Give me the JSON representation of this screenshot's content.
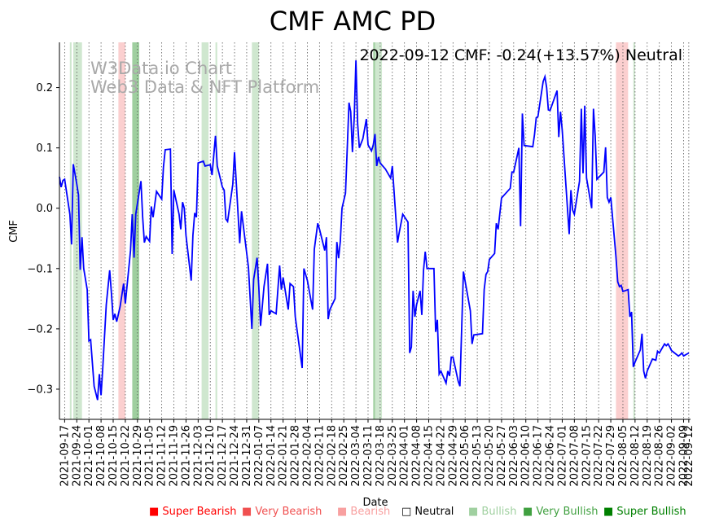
{
  "chart_data": {
    "type": "line",
    "title": "CMF AMC PD",
    "status_text": "2022-09-12 CMF: -0.24(+13.57%) Neutral",
    "watermark": [
      "W3Data.io Chart",
      "Web3 Data & NFT Platform"
    ],
    "xlabel": "Date",
    "ylabel": "CMF",
    "xlim": [
      "2021-09-14",
      "2022-09-13"
    ],
    "ylim": [
      -0.35,
      0.275
    ],
    "yticks": [
      0.2,
      0.1,
      0.0,
      -0.1,
      -0.2,
      -0.3
    ],
    "ytick_labels": [
      "0.2",
      "0.1",
      "0.0",
      "−0.1",
      "−0.2",
      "−0.3"
    ],
    "xtick_labels": [
      "2021-09-17",
      "2021-09-24",
      "2021-10-01",
      "2021-10-08",
      "2021-10-15",
      "2021-10-22",
      "2021-10-29",
      "2021-11-05",
      "2021-11-12",
      "2021-11-19",
      "2021-11-26",
      "2021-12-03",
      "2021-12-10",
      "2021-12-17",
      "2021-12-24",
      "2021-12-31",
      "2022-01-07",
      "2022-01-14",
      "2022-01-21",
      "2022-01-28",
      "2022-02-04",
      "2022-02-11",
      "2022-02-18",
      "2022-02-25",
      "2022-03-04",
      "2022-03-11",
      "2022-03-18",
      "2022-03-25",
      "2022-04-01",
      "2022-04-08",
      "2022-04-15",
      "2022-04-22",
      "2022-04-29",
      "2022-05-06",
      "2022-05-13",
      "2022-05-20",
      "2022-05-27",
      "2022-06-03",
      "2022-06-10",
      "2022-06-17",
      "2022-06-24",
      "2022-07-01",
      "2022-07-08",
      "2022-07-15",
      "2022-07-22",
      "2022-07-29",
      "2022-08-05",
      "2022-08-12",
      "2022-08-19",
      "2022-08-26",
      "2022-09-02",
      "2022-09-09",
      "2022-09-12"
    ],
    "bands": [
      {
        "start": "2021-09-20",
        "end": "2021-09-21",
        "sentiment": "Bullish"
      },
      {
        "start": "2021-09-22",
        "end": "2021-09-27",
        "sentiment": "Bullish"
      },
      {
        "start": "2021-10-18",
        "end": "2021-10-22",
        "sentiment": "Bearish"
      },
      {
        "start": "2021-10-26",
        "end": "2021-10-30",
        "sentiment": "Very Bullish"
      },
      {
        "start": "2021-12-05",
        "end": "2021-12-09",
        "sentiment": "Bullish"
      },
      {
        "start": "2021-12-13",
        "end": "2021-12-14",
        "sentiment": "Bullish"
      },
      {
        "start": "2022-01-03",
        "end": "2022-01-07",
        "sentiment": "Bullish"
      },
      {
        "start": "2022-03-14",
        "end": "2022-03-15",
        "sentiment": "Very Bullish"
      },
      {
        "start": "2022-03-15",
        "end": "2022-03-19",
        "sentiment": "Bullish"
      },
      {
        "start": "2022-08-01",
        "end": "2022-08-08",
        "sentiment": "Bearish"
      },
      {
        "start": "2022-08-11",
        "end": "2022-08-12",
        "sentiment": "Bullish"
      }
    ],
    "series": [
      {
        "name": "CMF",
        "color": "#0000ff",
        "points": [
          [
            "2021-09-14",
            0.052
          ],
          [
            "2021-09-15",
            0.035
          ],
          [
            "2021-09-16",
            0.046
          ],
          [
            "2021-09-17",
            0.048
          ],
          [
            "2021-09-20",
            -0.01
          ],
          [
            "2021-09-21",
            -0.06
          ],
          [
            "2021-09-22",
            0.073
          ],
          [
            "2021-09-24",
            0.04
          ],
          [
            "2021-09-25",
            0.022
          ],
          [
            "2021-09-26",
            -0.102
          ],
          [
            "2021-09-27",
            -0.048
          ],
          [
            "2021-09-28",
            -0.1
          ],
          [
            "2021-09-30",
            -0.135
          ],
          [
            "2021-10-01",
            -0.22
          ],
          [
            "2021-10-02",
            -0.218
          ],
          [
            "2021-10-04",
            -0.295
          ],
          [
            "2021-10-06",
            -0.318
          ],
          [
            "2021-10-07",
            -0.275
          ],
          [
            "2021-10-08",
            -0.31
          ],
          [
            "2021-10-09",
            -0.265
          ],
          [
            "2021-10-11",
            -0.16
          ],
          [
            "2021-10-13",
            -0.103
          ],
          [
            "2021-10-14",
            -0.142
          ],
          [
            "2021-10-15",
            -0.185
          ],
          [
            "2021-10-16",
            -0.175
          ],
          [
            "2021-10-17",
            -0.188
          ],
          [
            "2021-10-19",
            -0.163
          ],
          [
            "2021-10-21",
            -0.125
          ],
          [
            "2021-10-22",
            -0.158
          ],
          [
            "2021-10-25",
            -0.07
          ],
          [
            "2021-10-26",
            -0.01
          ],
          [
            "2021-10-27",
            -0.082
          ],
          [
            "2021-10-28",
            -0.01
          ],
          [
            "2021-10-31",
            0.045
          ],
          [
            "2021-11-01",
            -0.015
          ],
          [
            "2021-11-02",
            -0.057
          ],
          [
            "2021-11-03",
            -0.047
          ],
          [
            "2021-11-05",
            -0.055
          ],
          [
            "2021-11-06",
            0.003
          ],
          [
            "2021-11-07",
            -0.015
          ],
          [
            "2021-11-09",
            0.028
          ],
          [
            "2021-11-12",
            0.015
          ],
          [
            "2021-11-13",
            0.068
          ],
          [
            "2021-11-14",
            0.097
          ],
          [
            "2021-11-17",
            0.098
          ],
          [
            "2021-11-18",
            -0.076
          ],
          [
            "2021-11-19",
            0.03
          ],
          [
            "2021-11-22",
            -0.01
          ],
          [
            "2021-11-23",
            -0.035
          ],
          [
            "2021-11-24",
            0.01
          ],
          [
            "2021-11-25",
            0.0
          ],
          [
            "2021-11-26",
            -0.045
          ],
          [
            "2021-11-29",
            -0.12
          ],
          [
            "2021-11-30",
            -0.045
          ],
          [
            "2021-12-01",
            -0.008
          ],
          [
            "2021-12-02",
            -0.015
          ],
          [
            "2021-12-03",
            0.075
          ],
          [
            "2021-12-06",
            0.078
          ],
          [
            "2021-12-07",
            0.07
          ],
          [
            "2021-12-10",
            0.072
          ],
          [
            "2021-12-11",
            0.055
          ],
          [
            "2021-12-13",
            0.12
          ],
          [
            "2021-12-14",
            0.07
          ],
          [
            "2021-12-17",
            0.035
          ],
          [
            "2021-12-18",
            0.03
          ],
          [
            "2021-12-19",
            -0.018
          ],
          [
            "2021-12-20",
            -0.022
          ],
          [
            "2021-12-23",
            0.04
          ],
          [
            "2021-12-24",
            0.093
          ],
          [
            "2021-12-27",
            -0.058
          ],
          [
            "2021-12-28",
            -0.005
          ],
          [
            "2022-01-01",
            -0.098
          ],
          [
            "2022-01-03",
            -0.2
          ],
          [
            "2022-01-04",
            -0.118
          ],
          [
            "2022-01-06",
            -0.082
          ],
          [
            "2022-01-07",
            -0.13
          ],
          [
            "2022-01-08",
            -0.195
          ],
          [
            "2022-01-10",
            -0.13
          ],
          [
            "2022-01-12",
            -0.092
          ],
          [
            "2022-01-13",
            -0.177
          ],
          [
            "2022-01-14",
            -0.17
          ],
          [
            "2022-01-17",
            -0.175
          ],
          [
            "2022-01-19",
            -0.095
          ],
          [
            "2022-01-20",
            -0.135
          ],
          [
            "2022-01-21",
            -0.115
          ],
          [
            "2022-01-24",
            -0.168
          ],
          [
            "2022-01-25",
            -0.125
          ],
          [
            "2022-01-27",
            -0.13
          ],
          [
            "2022-01-28",
            -0.18
          ],
          [
            "2022-02-01",
            -0.265
          ],
          [
            "2022-02-02",
            -0.1
          ],
          [
            "2022-02-04",
            -0.12
          ],
          [
            "2022-02-07",
            -0.168
          ],
          [
            "2022-02-08",
            -0.068
          ],
          [
            "2022-02-10",
            -0.025
          ],
          [
            "2022-02-11",
            -0.035
          ],
          [
            "2022-02-14",
            -0.07
          ],
          [
            "2022-02-15",
            -0.048
          ],
          [
            "2022-02-16",
            -0.184
          ],
          [
            "2022-02-17",
            -0.168
          ],
          [
            "2022-02-20",
            -0.15
          ],
          [
            "2022-02-21",
            -0.056
          ],
          [
            "2022-02-22",
            -0.083
          ],
          [
            "2022-02-23",
            -0.055
          ],
          [
            "2022-02-24",
            0.0
          ],
          [
            "2022-02-26",
            0.025
          ],
          [
            "2022-02-28",
            0.175
          ],
          [
            "2022-03-01",
            0.16
          ],
          [
            "2022-03-02",
            0.093
          ],
          [
            "2022-03-03",
            0.15
          ],
          [
            "2022-03-04",
            0.245
          ],
          [
            "2022-03-05",
            0.14
          ],
          [
            "2022-03-06",
            0.1
          ],
          [
            "2022-03-08",
            0.115
          ],
          [
            "2022-03-10",
            0.148
          ],
          [
            "2022-03-11",
            0.105
          ],
          [
            "2022-03-13",
            0.095
          ],
          [
            "2022-03-14",
            0.105
          ],
          [
            "2022-03-15",
            0.123
          ],
          [
            "2022-03-16",
            0.07
          ],
          [
            "2022-03-17",
            0.085
          ],
          [
            "2022-03-18",
            0.075
          ],
          [
            "2022-03-21",
            0.065
          ],
          [
            "2022-03-24",
            0.05
          ],
          [
            "2022-03-25",
            0.07
          ],
          [
            "2022-03-28",
            -0.057
          ],
          [
            "2022-03-29",
            -0.04
          ],
          [
            "2022-03-31",
            -0.01
          ],
          [
            "2022-04-03",
            -0.023
          ],
          [
            "2022-04-04",
            -0.24
          ],
          [
            "2022-04-05",
            -0.23
          ],
          [
            "2022-04-06",
            -0.137
          ],
          [
            "2022-04-07",
            -0.18
          ],
          [
            "2022-04-08",
            -0.16
          ],
          [
            "2022-04-10",
            -0.137
          ],
          [
            "2022-04-11",
            -0.177
          ],
          [
            "2022-04-12",
            -0.103
          ],
          [
            "2022-04-13",
            -0.072
          ],
          [
            "2022-04-14",
            -0.1
          ],
          [
            "2022-04-18",
            -0.1
          ],
          [
            "2022-04-19",
            -0.205
          ],
          [
            "2022-04-20",
            -0.185
          ],
          [
            "2022-04-21",
            -0.275
          ],
          [
            "2022-04-22",
            -0.27
          ],
          [
            "2022-04-25",
            -0.29
          ],
          [
            "2022-04-26",
            -0.27
          ],
          [
            "2022-04-27",
            -0.278
          ],
          [
            "2022-04-28",
            -0.247
          ],
          [
            "2022-04-29",
            -0.247
          ],
          [
            "2022-05-02",
            -0.287
          ],
          [
            "2022-05-03",
            -0.295
          ],
          [
            "2022-05-05",
            -0.105
          ],
          [
            "2022-05-09",
            -0.17
          ],
          [
            "2022-05-10",
            -0.225
          ],
          [
            "2022-05-11",
            -0.21
          ],
          [
            "2022-05-16",
            -0.208
          ],
          [
            "2022-05-17",
            -0.135
          ],
          [
            "2022-05-18",
            -0.11
          ],
          [
            "2022-05-19",
            -0.105
          ],
          [
            "2022-05-20",
            -0.085
          ],
          [
            "2022-05-23",
            -0.075
          ],
          [
            "2022-05-24",
            -0.025
          ],
          [
            "2022-05-25",
            -0.035
          ],
          [
            "2022-05-27",
            0.017
          ],
          [
            "2022-06-01",
            0.033
          ],
          [
            "2022-06-02",
            0.06
          ],
          [
            "2022-06-03",
            0.06
          ],
          [
            "2022-06-06",
            0.1
          ],
          [
            "2022-06-07",
            -0.03
          ],
          [
            "2022-06-08",
            0.157
          ],
          [
            "2022-06-09",
            0.104
          ],
          [
            "2022-06-14",
            0.102
          ],
          [
            "2022-06-15",
            0.122
          ],
          [
            "2022-06-16",
            0.15
          ],
          [
            "2022-06-17",
            0.152
          ],
          [
            "2022-06-20",
            0.21
          ],
          [
            "2022-06-21",
            0.218
          ],
          [
            "2022-06-22",
            0.2
          ],
          [
            "2022-06-23",
            0.163
          ],
          [
            "2022-06-24",
            0.162
          ],
          [
            "2022-06-28",
            0.195
          ],
          [
            "2022-06-29",
            0.118
          ],
          [
            "2022-06-30",
            0.16
          ],
          [
            "2022-07-01",
            0.13
          ],
          [
            "2022-07-05",
            -0.043
          ],
          [
            "2022-07-06",
            0.03
          ],
          [
            "2022-07-07",
            -0.003
          ],
          [
            "2022-07-08",
            -0.01
          ],
          [
            "2022-07-11",
            0.045
          ],
          [
            "2022-07-12",
            0.165
          ],
          [
            "2022-07-13",
            0.058
          ],
          [
            "2022-07-14",
            0.17
          ],
          [
            "2022-07-15",
            0.05
          ],
          [
            "2022-07-18",
            0.0
          ],
          [
            "2022-07-19",
            0.165
          ],
          [
            "2022-07-20",
            0.12
          ],
          [
            "2022-07-21",
            0.048
          ],
          [
            "2022-07-25",
            0.06
          ],
          [
            "2022-07-26",
            0.101
          ],
          [
            "2022-07-27",
            0.018
          ],
          [
            "2022-07-28",
            0.01
          ],
          [
            "2022-07-29",
            0.018
          ],
          [
            "2022-08-01",
            -0.08
          ],
          [
            "2022-08-02",
            -0.122
          ],
          [
            "2022-08-03",
            -0.13
          ],
          [
            "2022-08-04",
            -0.128
          ],
          [
            "2022-08-05",
            -0.138
          ],
          [
            "2022-08-08",
            -0.135
          ],
          [
            "2022-08-09",
            -0.18
          ],
          [
            "2022-08-10",
            -0.172
          ],
          [
            "2022-08-11",
            -0.263
          ],
          [
            "2022-08-12",
            -0.255
          ],
          [
            "2022-08-15",
            -0.235
          ],
          [
            "2022-08-16",
            -0.208
          ],
          [
            "2022-08-17",
            -0.27
          ],
          [
            "2022-08-18",
            -0.282
          ],
          [
            "2022-08-19",
            -0.27
          ],
          [
            "2022-08-22",
            -0.25
          ],
          [
            "2022-08-24",
            -0.252
          ],
          [
            "2022-08-25",
            -0.237
          ],
          [
            "2022-08-26",
            -0.24
          ],
          [
            "2022-08-29",
            -0.225
          ],
          [
            "2022-08-30",
            -0.228
          ],
          [
            "2022-08-31",
            -0.225
          ],
          [
            "2022-09-01",
            -0.23
          ],
          [
            "2022-09-02",
            -0.236
          ],
          [
            "2022-09-06",
            -0.245
          ],
          [
            "2022-09-07",
            -0.243
          ],
          [
            "2022-09-08",
            -0.24
          ],
          [
            "2022-09-09",
            -0.245
          ],
          [
            "2022-09-12",
            -0.24
          ]
        ]
      }
    ],
    "legend": [
      {
        "label": "Super Bearish",
        "color": "#ff0000"
      },
      {
        "label": "Very Bearish",
        "color": "#f05050"
      },
      {
        "label": "Bearish",
        "color": "#f8a0a0"
      },
      {
        "label": "Neutral",
        "color": "#000000"
      },
      {
        "label": "Bullish",
        "color": "#a0d0a0"
      },
      {
        "label": "Very Bullish",
        "color": "#40a040"
      },
      {
        "label": "Super Bullish",
        "color": "#008000"
      }
    ],
    "legend_neutral_symbol": "□",
    "legend_filled_symbol": "■"
  }
}
